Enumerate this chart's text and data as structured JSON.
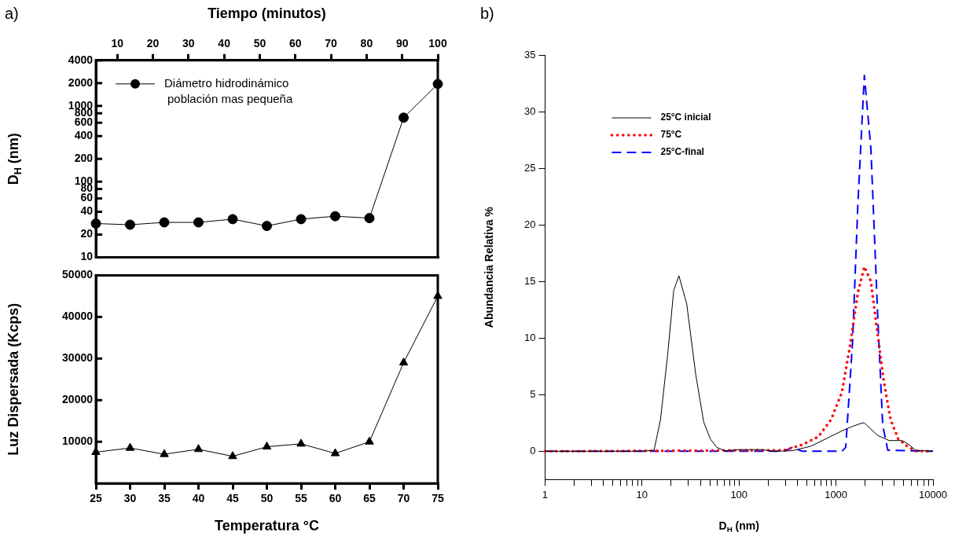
{
  "chart_data": [
    {
      "type": "line",
      "x": [
        25,
        30,
        35,
        40,
        45,
        50,
        55,
        60,
        65,
        70,
        75
      ],
      "xlim": [
        25,
        75
      ],
      "x2lim": [
        4,
        100
      ],
      "x2ticks": [
        10,
        20,
        30,
        40,
        50,
        60,
        70,
        80,
        90,
        100
      ],
      "x2label": "Tiempo (minutos)",
      "ylabel": "D$_{H}$ (nm)",
      "log": "y",
      "ylim": [
        10,
        4000
      ],
      "yticks": [
        10,
        20,
        40,
        60,
        80,
        100,
        200,
        400,
        600,
        800,
        1000,
        2000,
        4000
      ],
      "tick_labels": "y",
      "marker": "circle",
      "legend": "top left",
      "annotations": [
        "a)"
      ],
      "series": [
        {
          "name": "Diámetro hidrodinámico población mas pequeña",
          "color": "#000000",
          "values": [
            28,
            27,
            29,
            29,
            32,
            26,
            32,
            35,
            33,
            700,
            1950
          ]
        }
      ]
    },
    {
      "type": "line",
      "x": [
        25,
        30,
        35,
        40,
        45,
        50,
        55,
        60,
        65,
        70,
        75
      ],
      "xlim": [
        25,
        75
      ],
      "xticks": [
        25,
        30,
        35,
        40,
        45,
        50,
        55,
        60,
        65,
        70,
        75
      ],
      "xlabel": "Temperatura °C",
      "ylabel": "Luz Dispersada (Kcps)",
      "ylim": [
        0,
        50000
      ],
      "yticks": [
        10000,
        20000,
        30000,
        40000,
        50000
      ],
      "marker": "triangle",
      "series": [
        {
          "color": "#000000",
          "values": [
            7500,
            8500,
            7000,
            8200,
            6500,
            8800,
            9500,
            7200,
            10000,
            29000,
            45000
          ]
        }
      ]
    },
    {
      "type": "line",
      "log": "x",
      "xlim": [
        1,
        10000
      ],
      "xticks": [
        1,
        {
          "value": 2,
          "label": null
        },
        {
          "value": 3,
          "label": null
        },
        {
          "value": 4,
          "label": null
        },
        {
          "value": 5,
          "label": null
        },
        {
          "value": 6,
          "label": null
        },
        {
          "value": 7,
          "label": null
        },
        {
          "value": 8,
          "label": null
        },
        {
          "value": 9,
          "label": null
        },
        10,
        {
          "value": 20,
          "label": null
        },
        {
          "value": 30,
          "label": null
        },
        {
          "value": 40,
          "label": null
        },
        {
          "value": 50,
          "label": null
        },
        {
          "value": 60,
          "label": null
        },
        {
          "value": 70,
          "label": null
        },
        {
          "value": 80,
          "label": null
        },
        {
          "value": 90,
          "label": null
        },
        100,
        {
          "value": 200,
          "label": null
        },
        {
          "value": 300,
          "label": null
        },
        {
          "value": 400,
          "label": null
        },
        {
          "value": 500,
          "label": null
        },
        {
          "value": 600,
          "label": null
        },
        {
          "value": 700,
          "label": null
        },
        {
          "value": 800,
          "label": null
        },
        {
          "value": 900,
          "label": null
        },
        1000,
        {
          "value": 2000,
          "label": null
        },
        {
          "value": 3000,
          "label": null
        },
        {
          "value": 4000,
          "label": null
        },
        {
          "value": 5000,
          "label": null
        },
        {
          "value": 6000,
          "label": null
        },
        {
          "value": 7000,
          "label": null
        },
        {
          "value": 8000,
          "label": null
        },
        {
          "value": 9000,
          "label": null
        },
        10000
      ],
      "ylim": [
        -2.5,
        35
      ],
      "yticks": [
        0,
        5,
        10,
        15,
        20,
        25,
        30,
        35
      ],
      "xlabel": "D$_{H}$ (nm)",
      "ylabel": "Abundancia Relativa %",
      "legend": "top left",
      "marker": "none",
      "annotations": [
        "b)"
      ],
      "series": [
        {
          "name": "25°C inicial",
          "color": "#000000",
          "line_style": "solid",
          "x": [
            1,
            10,
            13.3,
            15.5,
            18.4,
            21.2,
            24,
            28.9,
            35.9,
            43.2,
            50.5,
            58.9,
            71,
            103,
            169,
            229,
            355,
            550,
            1150,
            1480,
            1860,
            1960,
            2690,
            3530,
            4800,
            5620,
            6600,
            10000
          ],
          "values": [
            0,
            0,
            0.1,
            2.8,
            8.6,
            14.2,
            15.5,
            13,
            6.7,
            2.6,
            1.1,
            0.35,
            0.05,
            0.15,
            0.15,
            0,
            0.05,
            0.45,
            1.8,
            2.2,
            2.5,
            2.5,
            1.4,
            0.95,
            0.95,
            0.6,
            0.1,
            0
          ]
        },
        {
          "name": "75°C",
          "color": "#ff0000",
          "line_style": "dotted",
          "x": [
            1,
            295,
            457,
            660,
            890,
            1150,
            1380,
            1680,
            1960,
            2290,
            2690,
            3110,
            3650,
            4380,
            5400,
            6700,
            10000
          ],
          "values": [
            0,
            0.1,
            0.6,
            1.3,
            2.8,
            5.2,
            9.1,
            14,
            16.3,
            15,
            10.3,
            6.2,
            2.8,
            1.1,
            0.45,
            0,
            0
          ]
        },
        {
          "name": "25°C-final",
          "color": "#0000ff",
          "line_style": "dashed",
          "x": [
            1,
            290,
            355,
            450,
            1150,
            1260,
            1480,
            1680,
            1960,
            2290,
            2690,
            3030,
            3420,
            10000
          ],
          "values": [
            0,
            0,
            0.35,
            0,
            0,
            0.35,
            9.6,
            21.8,
            33.2,
            26.7,
            12,
            2.3,
            0.1,
            0
          ]
        }
      ]
    }
  ]
}
